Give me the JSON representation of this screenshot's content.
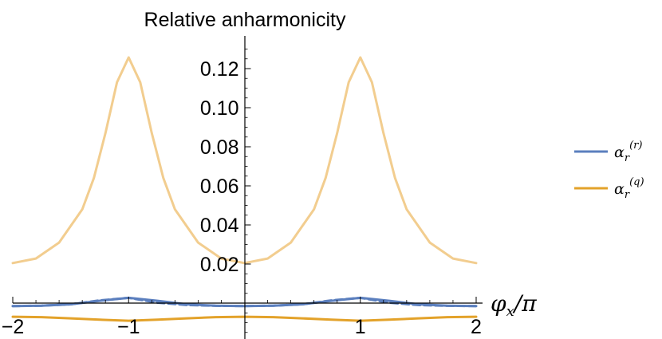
{
  "chart_data": {
    "type": "line",
    "title": "Relative anharmonicity",
    "xlabel": "φx/π",
    "xlabel_main": "φ",
    "xlabel_sub": "x",
    "xlabel_tail": "/π",
    "ylabel": "",
    "xlim": [
      -2,
      2
    ],
    "ylim": [
      -0.004,
      0.13
    ],
    "x_ticks": [
      -2,
      -1,
      1,
      2
    ],
    "x_tick_labels": [
      "−2",
      "−1",
      "1",
      "2"
    ],
    "y_ticks": [
      0.02,
      0.04,
      0.06,
      0.08,
      0.1,
      0.12
    ],
    "y_tick_labels": [
      "0.02",
      "0.04",
      "0.06",
      "0.08",
      "0.10",
      "0.12"
    ],
    "grid": false,
    "legend_position": "right",
    "series": [
      {
        "name": "αr(r)",
        "legend_main": "α",
        "legend_sub": "r",
        "legend_sup": "(r)",
        "color": "#5b7fbe",
        "style": "solid",
        "x": [
          -2,
          -1.75,
          -1.5,
          -1.25,
          -1,
          -0.75,
          -0.5,
          -0.25,
          0,
          0.25,
          0.5,
          0.75,
          1,
          1.25,
          1.5,
          1.75,
          2
        ],
        "values": [
          -0.0015,
          -0.0013,
          -0.0006,
          0.0012,
          0.0027,
          0.0012,
          -0.0006,
          -0.0013,
          -0.0015,
          -0.0013,
          -0.0006,
          0.0012,
          0.0027,
          0.0012,
          -0.0006,
          -0.0013,
          -0.0015
        ]
      },
      {
        "name": "αr(r) (dashed)",
        "color": "#5b7fbe",
        "style": "dashed",
        "x": [
          -2,
          -1.75,
          -1.5,
          -1.25,
          -1,
          -0.75,
          -0.5,
          -0.25,
          0,
          0.25,
          0.5,
          0.75,
          1,
          1.25,
          1.5,
          1.75,
          2
        ],
        "values": [
          -0.0015,
          -0.0013,
          -0.0006,
          0.0014,
          0.0027,
          0.0002,
          -0.001,
          -0.0014,
          -0.0015,
          -0.0013,
          -0.0006,
          0.0014,
          0.0027,
          0.0002,
          -0.001,
          -0.0014,
          -0.0015
        ]
      },
      {
        "name": "αr(q)",
        "legend_main": "α",
        "legend_sub": "r",
        "legend_sup": "(q)",
        "color": "#e3a22a",
        "style": "solid",
        "x": [
          -2,
          -1.75,
          -1.5,
          -1.25,
          -1,
          -0.75,
          -0.5,
          -0.25,
          0,
          0.25,
          0.5,
          0.75,
          1,
          1.25,
          1.5,
          1.75,
          2
        ],
        "values": [
          -0.007,
          -0.0072,
          -0.0078,
          -0.0085,
          -0.009,
          -0.0085,
          -0.0078,
          -0.0072,
          -0.007,
          -0.0072,
          -0.0078,
          -0.0085,
          -0.009,
          -0.0085,
          -0.0078,
          -0.0072,
          -0.007
        ]
      },
      {
        "name": "",
        "color": "#f2cd8f",
        "style": "solid",
        "x": [
          -2,
          -1.8,
          -1.6,
          -1.4,
          -1.3,
          -1.2,
          -1.1,
          -1,
          -0.9,
          -0.8,
          -0.7,
          -0.6,
          -0.4,
          -0.2,
          0,
          0.2,
          0.4,
          0.6,
          0.7,
          0.8,
          0.9,
          1,
          1.1,
          1.2,
          1.3,
          1.4,
          1.6,
          1.8,
          2
        ],
        "values": [
          0.0205,
          0.0228,
          0.031,
          0.048,
          0.064,
          0.087,
          0.113,
          0.1257,
          0.113,
          0.087,
          0.064,
          0.048,
          0.031,
          0.0228,
          0.0205,
          0.0228,
          0.031,
          0.048,
          0.064,
          0.087,
          0.113,
          0.1257,
          0.113,
          0.087,
          0.064,
          0.048,
          0.031,
          0.0228,
          0.0205
        ]
      }
    ]
  }
}
